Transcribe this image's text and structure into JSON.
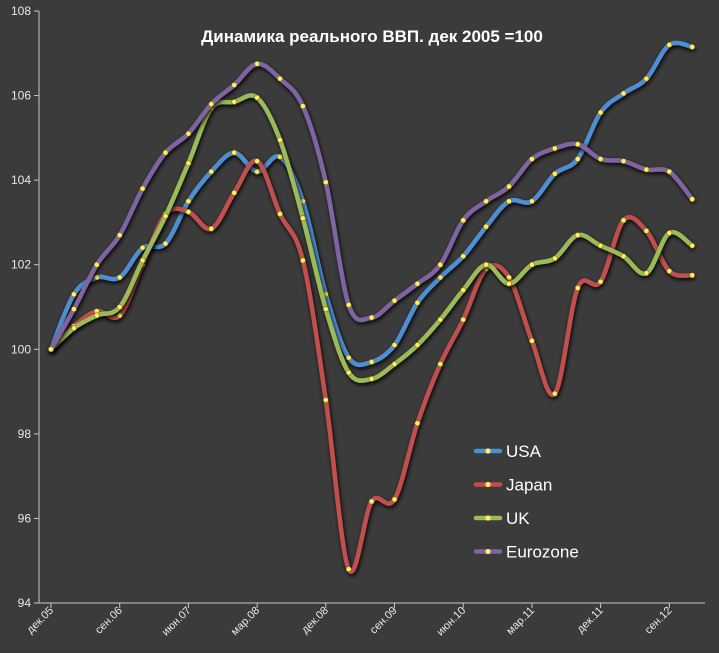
{
  "chart_data": {
    "type": "line",
    "title": "Динамика реального ВВП. дек 2005 =100",
    "xlabel": "",
    "ylabel": "",
    "ylim": [
      94,
      108
    ],
    "yticks": [
      94,
      96,
      98,
      100,
      102,
      104,
      106,
      108
    ],
    "xtick_labels": [
      "дек.05",
      "сен.06",
      "июн.07",
      "мар.08",
      "дек.08",
      "сен.09",
      "июн.10",
      "мар.11",
      "дек.11",
      "сен.12"
    ],
    "x": [
      0,
      1,
      2,
      3,
      4,
      5,
      6,
      7,
      8,
      9,
      10,
      11,
      12,
      13,
      14,
      15,
      16,
      17,
      18,
      19,
      20,
      21,
      22,
      23,
      24,
      25,
      26,
      27,
      28,
      29
    ],
    "grid": false,
    "legend_position": "bottom-right",
    "series": [
      {
        "name": "USA",
        "color": "#4f8ed1",
        "values": [
          100,
          101.3,
          101.7,
          101.7,
          102.4,
          102.5,
          103.5,
          104.2,
          104.65,
          104.2,
          104.55,
          103.5,
          101.3,
          99.8,
          99.7,
          100.1,
          101.1,
          101.7,
          102.2,
          102.9,
          103.5,
          103.5,
          104.15,
          104.5,
          105.6,
          106.05,
          106.4,
          107.2,
          107.15,
          null
        ]
      },
      {
        "name": "Japan",
        "color": "#c0504d",
        "values": [
          100,
          100.55,
          100.9,
          100.8,
          102,
          103.2,
          103.25,
          102.85,
          103.7,
          104.45,
          103.2,
          102.1,
          98.8,
          94.8,
          96.4,
          96.45,
          98.25,
          99.65,
          100.7,
          101.9,
          101.7,
          100.2,
          98.95,
          101.45,
          101.6,
          103.05,
          102.8,
          101.85,
          101.75,
          null
        ]
      },
      {
        "name": "UK",
        "color": "#9bbb59",
        "values": [
          100,
          100.5,
          100.8,
          101.0,
          102.1,
          103.15,
          104.4,
          105.7,
          105.85,
          105.95,
          104.95,
          103.1,
          100.95,
          99.45,
          99.3,
          99.65,
          100.1,
          100.7,
          101.4,
          102.0,
          101.55,
          102.0,
          102.15,
          102.7,
          102.45,
          102.2,
          101.8,
          102.75,
          102.45,
          null
        ]
      },
      {
        "name": "Eurozone",
        "color": "#8064a2",
        "values": [
          100,
          100.95,
          102.0,
          102.7,
          103.8,
          104.65,
          105.1,
          105.8,
          106.25,
          106.75,
          106.4,
          105.75,
          103.95,
          101.05,
          100.75,
          101.15,
          101.55,
          102.0,
          103.05,
          103.5,
          103.85,
          104.5,
          104.75,
          104.85,
          104.5,
          104.45,
          104.25,
          104.2,
          103.55,
          null
        ]
      }
    ]
  }
}
